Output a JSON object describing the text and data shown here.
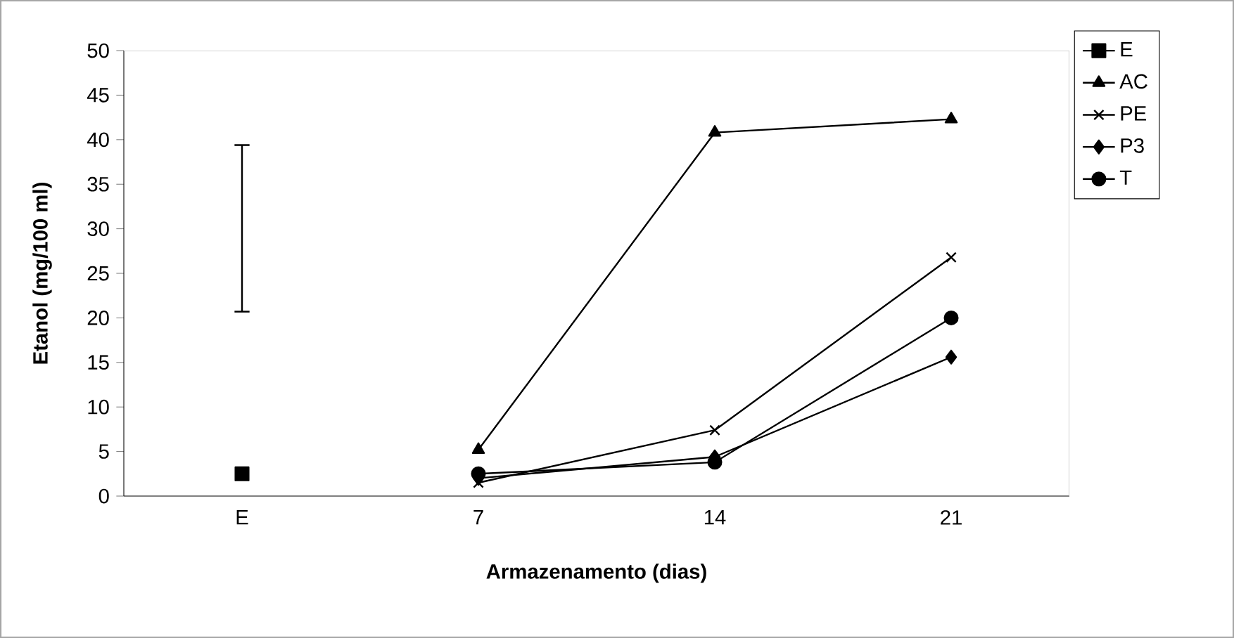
{
  "chart_data": {
    "type": "line",
    "xlabel": "Armazenamento (dias)",
    "ylabel": "Etanol (mg/100 ml)",
    "categories": [
      "E",
      "7",
      "14",
      "21"
    ],
    "ylim": [
      0,
      50
    ],
    "yticks": [
      0,
      5,
      10,
      15,
      20,
      25,
      30,
      35,
      40,
      45,
      50
    ],
    "grid": false,
    "legend": "right",
    "line_style": "solid",
    "series": [
      {
        "name": "E",
        "color": "#000000",
        "marker": "square",
        "values": [
          2.5,
          null,
          null,
          null
        ],
        "errors": [
          [
            20.7,
            39.4
          ],
          null,
          null,
          null
        ]
      },
      {
        "name": "AC",
        "color": "#000000",
        "marker": "triangle",
        "values": [
          null,
          5.2,
          40.8,
          42.3
        ]
      },
      {
        "name": "PE",
        "color": "#000000",
        "marker": "cross",
        "values": [
          null,
          1.5,
          7.4,
          26.8
        ]
      },
      {
        "name": "P3",
        "color": "#000000",
        "marker": "diamond",
        "values": [
          null,
          2.0,
          4.4,
          15.6
        ]
      },
      {
        "name": "T",
        "color": "#000000",
        "marker": "circle",
        "values": [
          null,
          2.5,
          3.8,
          20.0
        ]
      }
    ]
  }
}
